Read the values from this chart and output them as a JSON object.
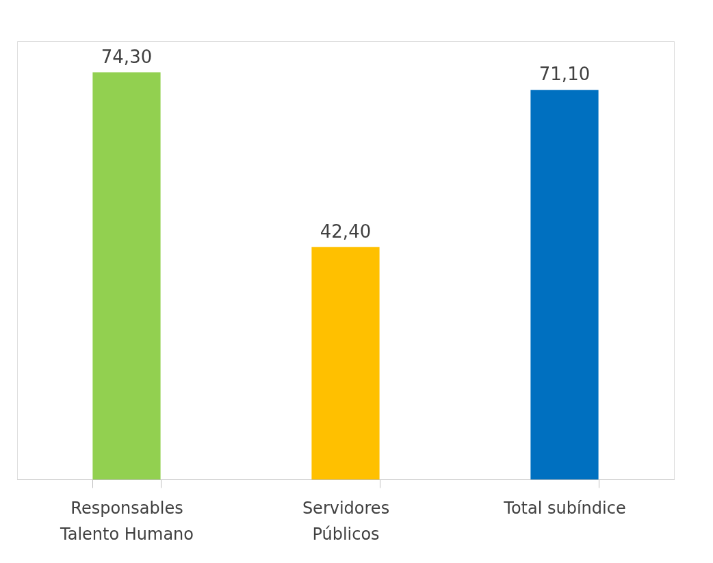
{
  "chart_data": {
    "type": "bar",
    "categories": [
      "Responsables Talento Humano",
      "Servidores Públicos",
      "Total subíndice"
    ],
    "values": [
      74.3,
      42.4,
      71.1
    ],
    "colors": [
      "#92d050",
      "#ffc000",
      "#0070c0"
    ],
    "value_labels": [
      "74,30",
      "42,40",
      "71,10"
    ]
  }
}
